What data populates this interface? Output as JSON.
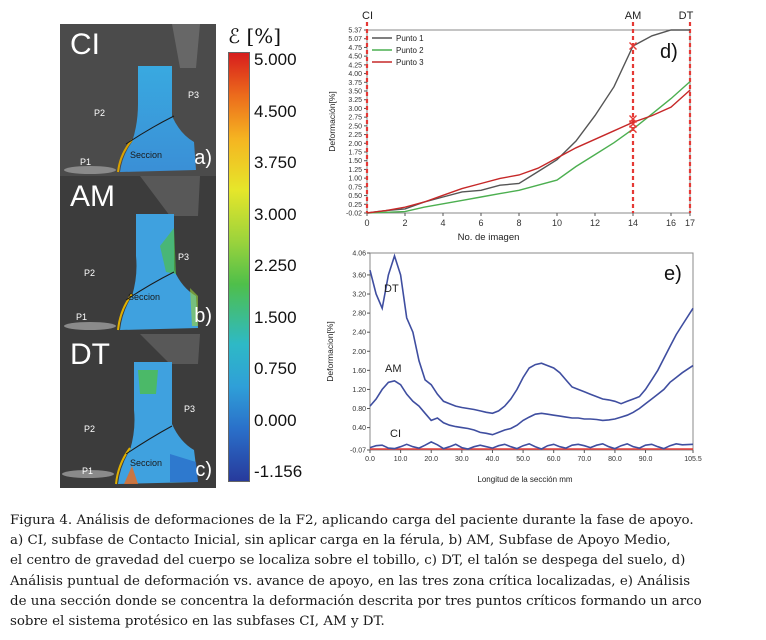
{
  "panels": [
    {
      "title": "CI",
      "letter": "a)",
      "p1": "P1",
      "p2": "P2",
      "p3": "P3",
      "seccion": "Seccion"
    },
    {
      "title": "AM",
      "letter": "b)",
      "p1": "P1",
      "p2": "P2",
      "p3": "P3",
      "seccion": "Seccion"
    },
    {
      "title": "DT",
      "letter": "c)",
      "p1": "P1",
      "p2": "P2",
      "p3": "P3",
      "seccion": "Seccion"
    }
  ],
  "colorbar": {
    "title": "ℰ [%]",
    "ticks": [
      "5.000",
      "4.500",
      "3.750",
      "3.000",
      "2.250",
      "1.500",
      "0.750",
      "0.000",
      "-1.156"
    ]
  },
  "chart_data": [
    {
      "id": "d",
      "type": "line",
      "panel_letter": "d)",
      "xlabel": "No. de imagen",
      "ylabel": "Deformación[%]",
      "xlim": [
        0,
        17
      ],
      "ylim": [
        -0.02,
        5.37
      ],
      "x_ticks": [
        "0",
        "2",
        "4",
        "6",
        "8",
        "10",
        "12",
        "14",
        "16",
        "17"
      ],
      "y_ticks": [
        "-0.02",
        "0.25",
        "0.50",
        "0.75",
        "1.00",
        "1.25",
        "1.50",
        "1.75",
        "2.00",
        "2.25",
        "2.50",
        "2.75",
        "3.00",
        "3.25",
        "3.50",
        "3.75",
        "4.00",
        "4.25",
        "4.50",
        "4.75",
        "5.07",
        "5.37"
      ],
      "legend": [
        "Punto 1",
        "Punto 2",
        "Punto 3"
      ],
      "legend_position": "top-left",
      "series": [
        {
          "name": "Punto 1",
          "color": "#555555",
          "x": [
            0,
            1,
            2,
            3,
            4,
            5,
            6,
            7,
            8,
            9,
            10,
            11,
            12,
            13,
            14,
            15,
            16,
            17
          ],
          "y": [
            -0.02,
            0.05,
            0.1,
            0.3,
            0.45,
            0.6,
            0.65,
            0.8,
            0.85,
            1.2,
            1.55,
            2.1,
            2.85,
            3.7,
            4.9,
            5.2,
            5.37,
            5.37
          ]
        },
        {
          "name": "Punto 2",
          "color": "#4caf50",
          "x": [
            0,
            1,
            2,
            3,
            4,
            5,
            6,
            7,
            8,
            9,
            10,
            11,
            12,
            13,
            14,
            15,
            16,
            17
          ],
          "y": [
            -0.02,
            0.0,
            0.02,
            0.15,
            0.25,
            0.35,
            0.45,
            0.55,
            0.65,
            0.8,
            0.95,
            1.35,
            1.7,
            2.05,
            2.45,
            2.9,
            3.35,
            3.85
          ]
        },
        {
          "name": "Punto 3",
          "color": "#c62828",
          "x": [
            0,
            1,
            2,
            3,
            4,
            5,
            6,
            7,
            8,
            9,
            10,
            11,
            12,
            13,
            14,
            15,
            16,
            17
          ],
          "y": [
            -0.02,
            0.05,
            0.15,
            0.3,
            0.5,
            0.7,
            0.85,
            1.0,
            1.1,
            1.3,
            1.6,
            1.9,
            2.15,
            2.4,
            2.65,
            2.85,
            3.1,
            3.6
          ]
        }
      ],
      "markers": [
        {
          "x": 14,
          "y": 4.9
        },
        {
          "x": 14,
          "y": 2.75
        },
        {
          "x": 14,
          "y": 2.6
        },
        {
          "x": 14,
          "y": 2.45
        }
      ],
      "phase_lines": [
        {
          "label": "CI",
          "x": 0
        },
        {
          "label": "AM",
          "x": 14
        },
        {
          "label": "DT",
          "x": 17
        }
      ],
      "phase_color": "#e53935"
    },
    {
      "id": "e",
      "type": "line",
      "panel_letter": "e)",
      "xlabel": "Longitud de la sección mm",
      "ylabel": "Deformacion[%]",
      "xlim": [
        0,
        105.5
      ],
      "ylim": [
        -0.07,
        4.06
      ],
      "x_ticks": [
        "0.0",
        "10.0",
        "20.0",
        "30.0",
        "40.0",
        "50.0",
        "60.0",
        "70.0",
        "80.0",
        "90.0",
        "105.5"
      ],
      "x_tick_values": [
        0,
        10,
        20,
        30,
        40,
        50,
        60,
        70,
        80,
        90,
        105.5
      ],
      "y_ticks": [
        "4.06",
        "3.60",
        "3.20",
        "2.80",
        "2.40",
        "2.00",
        "1.60",
        "1.20",
        "0.80",
        "0.40",
        "-0.07"
      ],
      "y_tick_values": [
        4.06,
        3.6,
        3.2,
        2.8,
        2.4,
        2.0,
        1.6,
        1.2,
        0.8,
        0.4,
        -0.07
      ],
      "series": [
        {
          "name": "DT",
          "color": "#3f4ea0",
          "x": [
            0,
            2,
            4,
            6,
            8,
            10,
            12,
            14,
            16,
            18,
            20,
            22,
            24,
            26,
            28,
            30,
            32,
            34,
            36,
            38,
            40,
            42,
            44,
            46,
            48,
            50,
            52,
            54,
            56,
            58,
            60,
            62,
            64,
            66,
            68,
            70,
            72,
            74,
            76,
            78,
            80,
            82,
            84,
            86,
            88,
            90,
            92,
            94,
            96,
            98,
            100,
            102,
            105.5
          ],
          "y": [
            3.7,
            3.2,
            2.9,
            3.6,
            4.0,
            3.6,
            2.7,
            2.4,
            1.8,
            1.4,
            1.3,
            1.1,
            0.95,
            0.9,
            0.85,
            0.82,
            0.8,
            0.78,
            0.75,
            0.72,
            0.7,
            0.75,
            0.85,
            1.0,
            1.2,
            1.45,
            1.65,
            1.72,
            1.75,
            1.7,
            1.65,
            1.55,
            1.4,
            1.25,
            1.2,
            1.15,
            1.1,
            1.05,
            1.0,
            0.98,
            0.95,
            0.9,
            0.95,
            1.0,
            1.05,
            1.2,
            1.4,
            1.6,
            1.85,
            2.1,
            2.35,
            2.55,
            2.9
          ]
        },
        {
          "name": "AM",
          "color": "#3f4ea0",
          "x": [
            0,
            2,
            4,
            6,
            8,
            10,
            12,
            14,
            16,
            18,
            20,
            22,
            24,
            26,
            28,
            30,
            32,
            34,
            36,
            38,
            40,
            42,
            44,
            46,
            48,
            50,
            52,
            54,
            56,
            58,
            60,
            62,
            64,
            66,
            68,
            70,
            72,
            74,
            76,
            78,
            80,
            82,
            84,
            86,
            88,
            90,
            92,
            94,
            96,
            98,
            100,
            102,
            105.5
          ],
          "y": [
            0.85,
            1.0,
            1.2,
            1.35,
            1.38,
            1.3,
            1.1,
            0.95,
            0.85,
            0.7,
            0.55,
            0.6,
            0.5,
            0.45,
            0.42,
            0.4,
            0.38,
            0.35,
            0.3,
            0.28,
            0.25,
            0.3,
            0.35,
            0.38,
            0.45,
            0.55,
            0.62,
            0.68,
            0.7,
            0.68,
            0.66,
            0.64,
            0.62,
            0.6,
            0.6,
            0.58,
            0.58,
            0.57,
            0.55,
            0.56,
            0.58,
            0.62,
            0.66,
            0.72,
            0.8,
            0.9,
            1.0,
            1.1,
            1.2,
            1.35,
            1.45,
            1.55,
            1.7
          ]
        },
        {
          "name": "CI",
          "color": "#3f4ea0",
          "x": [
            0,
            2,
            4,
            6,
            8,
            10,
            12,
            14,
            16,
            18,
            20,
            22,
            24,
            26,
            28,
            30,
            32,
            34,
            36,
            38,
            40,
            42,
            44,
            46,
            48,
            50,
            52,
            54,
            56,
            58,
            60,
            62,
            64,
            66,
            68,
            70,
            72,
            74,
            76,
            78,
            80,
            82,
            84,
            86,
            88,
            90,
            92,
            94,
            96,
            98,
            100,
            102,
            105.5
          ],
          "y": [
            -0.02,
            0.02,
            0.03,
            -0.03,
            -0.04,
            0.0,
            0.05,
            0.0,
            -0.03,
            0.03,
            0.1,
            0.04,
            -0.04,
            0.0,
            0.05,
            -0.02,
            -0.05,
            0.0,
            0.03,
            0.0,
            -0.03,
            0.02,
            0.05,
            0.0,
            -0.04,
            0.02,
            0.06,
            0.0,
            -0.05,
            0.02,
            0.05,
            0.0,
            -0.03,
            0.03,
            0.05,
            0.02,
            -0.02,
            0.03,
            0.06,
            0.0,
            -0.04,
            0.02,
            0.06,
            0.0,
            -0.03,
            0.03,
            0.05,
            0.0,
            -0.04,
            0.02,
            0.06,
            0.04,
            0.05
          ]
        }
      ],
      "baseline": {
        "y": -0.07,
        "color": "#e53935"
      },
      "series_labels": [
        "DT",
        "AM",
        "CI"
      ]
    }
  ],
  "caption": [
    "Figura 4.  Análisis de deformaciones de la F2, aplicando carga del paciente durante la fase de apoyo.",
    "a) CI, subfase de Contacto Inicial, sin aplicar carga en la férula, b) AM, Subfase de Apoyo Medio,",
    "el centro de gravedad del cuerpo se localiza sobre el tobillo, c) DT, el talón se despega del suelo, d)",
    "Análisis puntual de deformación vs.  avance de apoyo, en las tres zona crítica localizadas, e) Análisis",
    "de una sección donde se concentra la deformación descrita por tres puntos críticos formando un arco",
    "sobre el sistema protésico en las subfases CI, AM y DT."
  ]
}
